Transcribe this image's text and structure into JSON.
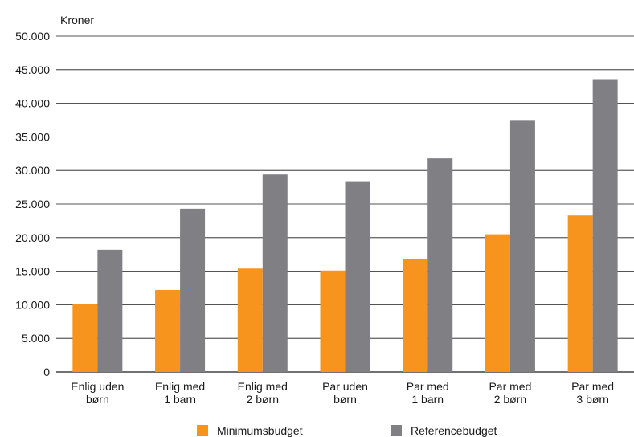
{
  "chart_data": {
    "type": "bar",
    "ylabel": "Kroner",
    "ylim": [
      0,
      50000
    ],
    "yticks": [
      "0",
      "5.000",
      "10.000",
      "15.000",
      "20.000",
      "25.000",
      "30.000",
      "35.000",
      "40.000",
      "45.000",
      "50.000"
    ],
    "grid": true,
    "legend_position": "bottom",
    "categories": [
      [
        "Enlig uden",
        "børn"
      ],
      [
        "Enlig med",
        "1 barn"
      ],
      [
        "Enlig med",
        "2 børn"
      ],
      [
        "Par uden",
        "børn"
      ],
      [
        "Par med",
        "1 barn"
      ],
      [
        "Par med",
        "2 børn"
      ],
      [
        "Par med",
        "3 børn"
      ]
    ],
    "series": [
      {
        "name": "Minimumsbudget",
        "color": "#f7941d",
        "values": [
          10100,
          12200,
          15400,
          15100,
          16800,
          20500,
          23300
        ]
      },
      {
        "name": "Referencebudget",
        "color": "#808084",
        "values": [
          18200,
          24300,
          29400,
          28400,
          31800,
          37400,
          43600
        ]
      }
    ]
  }
}
